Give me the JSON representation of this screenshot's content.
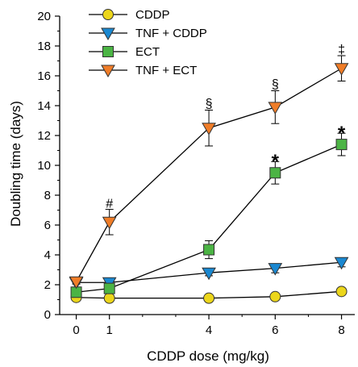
{
  "chart_data": {
    "type": "line",
    "xlabel": "CDDP dose (mg/kg)",
    "ylabel": "Doubling time (days)",
    "xlim": [
      -0.5,
      8.4
    ],
    "ylim": [
      0,
      20
    ],
    "xticks": [
      0,
      1,
      4,
      6,
      8
    ],
    "yticks": [
      0,
      2,
      4,
      6,
      8,
      10,
      12,
      14,
      16,
      18,
      20
    ],
    "x": [
      0,
      1,
      4,
      6,
      8
    ],
    "legend_position": "top-left",
    "grid": false,
    "series": [
      {
        "name": "CDDP",
        "marker": "circle",
        "color": "#ecd61b",
        "values": [
          1.15,
          1.1,
          1.1,
          1.2,
          1.55
        ],
        "errors": [
          0.05,
          0.05,
          0.05,
          0.05,
          0.1
        ]
      },
      {
        "name": "TNF + CDDP",
        "marker": "triangle-down",
        "color": "#1a88d1",
        "values": [
          2.15,
          2.15,
          2.8,
          3.1,
          3.5
        ],
        "errors": [
          0.1,
          0.1,
          0.2,
          0.3,
          0.3
        ]
      },
      {
        "name": "ECT",
        "marker": "square",
        "color": "#4bb444",
        "values": [
          1.5,
          1.75,
          4.35,
          9.5,
          11.4
        ],
        "errors": [
          0.1,
          0.3,
          0.6,
          0.75,
          0.75
        ]
      },
      {
        "name": "TNF + ECT",
        "marker": "triangle-down",
        "color": "#f07d28",
        "values": [
          2.2,
          6.2,
          12.5,
          13.9,
          16.5
        ],
        "errors": [
          0.15,
          0.85,
          1.2,
          1.1,
          0.85
        ]
      }
    ],
    "annotations": [
      {
        "text": "#",
        "x": 1,
        "y": 7.5
      },
      {
        "text": "§",
        "x": 4,
        "y": 14.2
      },
      {
        "text": "§",
        "x": 6,
        "y": 15.5
      },
      {
        "text": "‡",
        "x": 8,
        "y": 17.8
      },
      {
        "text": "*",
        "x": 6,
        "y": 10.6
      },
      {
        "text": "*",
        "x": 8,
        "y": 12.5
      }
    ]
  }
}
